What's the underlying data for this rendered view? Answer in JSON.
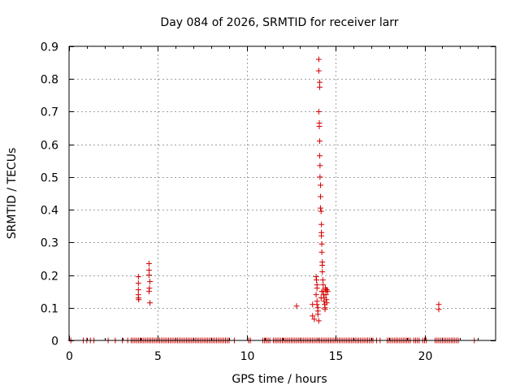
{
  "chart_data": {
    "type": "scatter",
    "title": "Day 084 of 2026, SRMTID for receiver larr",
    "xlabel": "GPS time / hours",
    "ylabel": "SRMTID / TECUs",
    "xlim": [
      0,
      24
    ],
    "ylim": [
      0,
      0.9
    ],
    "x_ticks": [
      0,
      5,
      10,
      15,
      20
    ],
    "y_ticks": [
      0,
      0.1,
      0.2,
      0.3,
      0.4,
      0.5,
      0.6,
      0.7,
      0.8,
      0.9
    ],
    "x_tick_labels": [
      "0",
      "5",
      "10",
      "15",
      "20"
    ],
    "y_tick_labels": [
      "0",
      "0.1",
      "0.2",
      "0.3",
      "0.4",
      "0.5",
      "0.6",
      "0.7",
      "0.8",
      "0.9"
    ],
    "grid": true,
    "marker": "+",
    "color": "#d40000",
    "series": [
      {
        "name": "SRMTID",
        "points": [
          [
            3.9,
            0.195
          ],
          [
            3.9,
            0.175
          ],
          [
            3.9,
            0.155
          ],
          [
            3.9,
            0.14
          ],
          [
            3.9,
            0.13
          ],
          [
            3.92,
            0.125
          ],
          [
            4.5,
            0.235
          ],
          [
            4.5,
            0.215
          ],
          [
            4.5,
            0.2
          ],
          [
            4.55,
            0.18
          ],
          [
            4.52,
            0.16
          ],
          [
            4.5,
            0.15
          ],
          [
            4.55,
            0.115
          ],
          [
            12.8,
            0.105
          ],
          [
            13.7,
            0.11
          ],
          [
            13.7,
            0.075
          ],
          [
            13.8,
            0.065
          ],
          [
            13.9,
            0.195
          ],
          [
            13.92,
            0.185
          ],
          [
            13.95,
            0.17
          ],
          [
            13.95,
            0.16
          ],
          [
            13.9,
            0.14
          ],
          [
            13.95,
            0.12
          ],
          [
            13.95,
            0.11
          ],
          [
            14.0,
            0.1
          ],
          [
            14.0,
            0.09
          ],
          [
            14.0,
            0.08
          ],
          [
            14.05,
            0.06
          ],
          [
            14.05,
            0.86
          ],
          [
            14.05,
            0.825
          ],
          [
            14.1,
            0.79
          ],
          [
            14.1,
            0.775
          ],
          [
            14.05,
            0.7
          ],
          [
            14.08,
            0.665
          ],
          [
            14.08,
            0.655
          ],
          [
            14.1,
            0.61
          ],
          [
            14.1,
            0.565
          ],
          [
            14.12,
            0.535
          ],
          [
            14.12,
            0.5
          ],
          [
            14.15,
            0.475
          ],
          [
            14.15,
            0.44
          ],
          [
            14.15,
            0.405
          ],
          [
            14.18,
            0.395
          ],
          [
            14.2,
            0.355
          ],
          [
            14.2,
            0.33
          ],
          [
            14.2,
            0.32
          ],
          [
            14.22,
            0.295
          ],
          [
            14.22,
            0.27
          ],
          [
            14.25,
            0.24
          ],
          [
            14.25,
            0.23
          ],
          [
            14.25,
            0.21
          ],
          [
            14.28,
            0.185
          ],
          [
            14.3,
            0.17
          ],
          [
            14.3,
            0.15
          ],
          [
            14.32,
            0.14
          ],
          [
            14.35,
            0.13
          ],
          [
            14.35,
            0.12
          ],
          [
            14.38,
            0.11
          ],
          [
            14.4,
            0.1
          ],
          [
            14.4,
            0.095
          ],
          [
            14.42,
            0.16
          ],
          [
            14.45,
            0.155
          ],
          [
            14.45,
            0.14
          ],
          [
            14.48,
            0.125
          ],
          [
            14.5,
            0.155
          ],
          [
            14.5,
            0.115
          ],
          [
            14.55,
            0.15
          ],
          [
            14.22,
            0.15
          ],
          [
            14.18,
            0.13
          ],
          [
            20.8,
            0.11
          ],
          [
            20.8,
            0.095
          ]
        ],
        "zero_x_values": [
          0.1,
          0.8,
          1.0,
          1.2,
          1.4,
          2.2,
          2.6,
          3.0,
          3.3,
          3.5,
          3.6,
          3.7,
          3.8,
          3.9,
          4.0,
          4.1,
          4.2,
          4.3,
          4.4,
          4.5,
          4.6,
          4.7,
          4.8,
          4.9,
          5.0,
          5.1,
          5.2,
          5.3,
          5.4,
          5.5,
          5.6,
          5.7,
          5.8,
          5.9,
          6.0,
          6.1,
          6.2,
          6.3,
          6.4,
          6.5,
          6.6,
          6.7,
          6.8,
          6.9,
          7.0,
          7.1,
          7.2,
          7.3,
          7.4,
          7.5,
          7.6,
          7.7,
          7.8,
          7.9,
          8.0,
          8.1,
          8.2,
          8.3,
          8.4,
          8.5,
          8.6,
          8.7,
          8.8,
          8.9,
          9.0,
          9.3,
          10.1,
          10.2,
          10.9,
          11.0,
          11.1,
          11.2,
          11.3,
          11.5,
          11.6,
          11.7,
          11.8,
          11.9,
          12.0,
          12.1,
          12.2,
          12.3,
          12.4,
          12.5,
          12.6,
          12.7,
          12.8,
          12.9,
          13.0,
          13.1,
          13.2,
          13.3,
          13.4,
          13.5,
          13.6,
          13.7,
          13.8,
          13.9,
          14.0,
          14.1,
          14.2,
          14.3,
          14.4,
          14.5,
          14.6,
          14.7,
          14.8,
          14.9,
          15.0,
          15.1,
          15.2,
          15.3,
          15.4,
          15.5,
          15.6,
          15.7,
          15.8,
          15.9,
          16.0,
          16.1,
          16.2,
          16.3,
          16.4,
          16.5,
          16.6,
          16.7,
          16.8,
          16.9,
          17.0,
          17.1,
          17.3,
          17.5,
          17.9,
          18.0,
          18.1,
          18.2,
          18.3,
          18.4,
          18.5,
          18.6,
          18.7,
          18.8,
          18.9,
          19.0,
          19.1,
          19.2,
          19.4,
          19.5,
          19.6,
          19.7,
          19.9,
          20.0,
          20.1,
          20.6,
          20.7,
          20.8,
          20.9,
          21.0,
          21.1,
          21.2,
          21.3,
          21.4,
          21.5,
          21.6,
          21.7,
          21.8,
          21.9,
          22.8
        ]
      }
    ]
  }
}
